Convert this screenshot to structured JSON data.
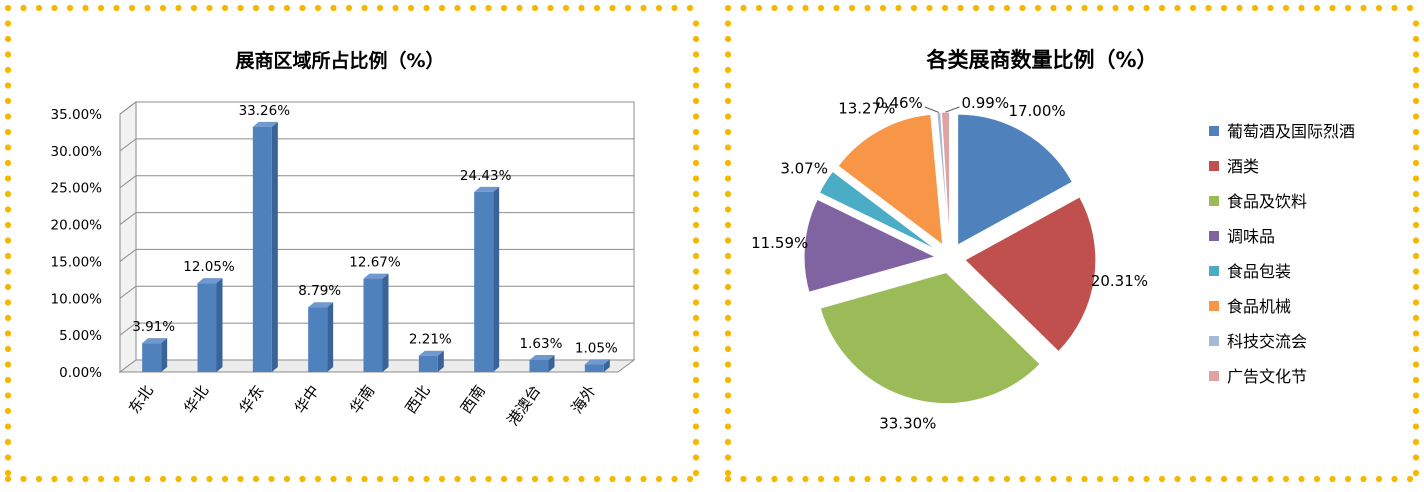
{
  "colors": {
    "dot_border": "#f5b800",
    "bar_front": "#4f81bd",
    "bar_side": "#3a6497",
    "bar_top": "#6f99cf",
    "grid": "#8c8c8c"
  },
  "chart_data": [
    {
      "type": "bar",
      "title": "展商区域所占比例（%）",
      "categories": [
        "东北",
        "华北",
        "华东",
        "华中",
        "华南",
        "西北",
        "西南",
        "港澳台",
        "海外"
      ],
      "values": [
        3.91,
        12.05,
        33.26,
        8.79,
        12.67,
        2.21,
        24.43,
        1.63,
        1.05
      ],
      "value_labels": [
        "3.91%",
        "12.05%",
        "33.26%",
        "8.79%",
        "12.67%",
        "2.21%",
        "24.43%",
        "1.63%",
        "1.05%"
      ],
      "y_ticks": [
        0,
        5,
        10,
        15,
        20,
        25,
        30,
        35
      ],
      "y_tick_labels": [
        "0.00%",
        "5.00%",
        "10.00%",
        "15.00%",
        "20.00%",
        "25.00%",
        "30.00%",
        "35.00%"
      ],
      "ylim": [
        0,
        35
      ],
      "grid": true,
      "legend": "none",
      "style": "3d-columns"
    },
    {
      "type": "pie",
      "title": "各类展商数量比例（%）",
      "style": "exploded",
      "legend": "right",
      "slices": [
        {
          "name": "葡萄酒及国际烈酒",
          "value": 17.0,
          "label": "17.00%",
          "color": "#4f81bd"
        },
        {
          "name": "酒类",
          "value": 20.31,
          "label": "20.31%",
          "color": "#c0504d"
        },
        {
          "name": "食品及饮料",
          "value": 33.3,
          "label": "33.30%",
          "color": "#9bbb59"
        },
        {
          "name": "调味品",
          "value": 11.59,
          "label": "11.59%",
          "color": "#8064a2"
        },
        {
          "name": "食品包装",
          "value": 3.07,
          "label": "3.07%",
          "color": "#4bacc6"
        },
        {
          "name": "食品机械",
          "value": 13.27,
          "label": "13.27%",
          "color": "#f79646"
        },
        {
          "name": "科技交流会",
          "value": 0.46,
          "label": "0.46%",
          "color": "#a5b9d9"
        },
        {
          "name": "广告文化节",
          "value": 0.99,
          "label": "0.99%",
          "color": "#e0a3a3"
        }
      ]
    }
  ]
}
